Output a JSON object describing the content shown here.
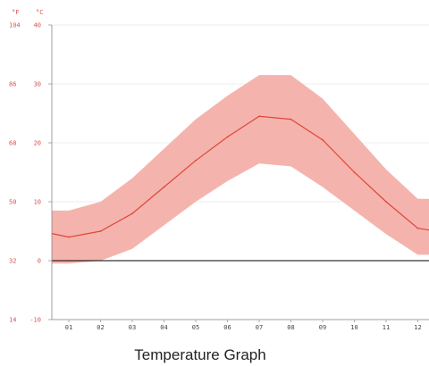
{
  "chart_data": {
    "type": "area",
    "caption": "Temperature Graph",
    "unit_labels": {
      "fahrenheit": "°F",
      "celsius": "°C"
    },
    "y_celsius_ticks": [
      "40",
      "30",
      "20",
      "10",
      "0",
      "-10"
    ],
    "y_fahrenheit_ticks": [
      "104",
      "86",
      "68",
      "50",
      "32",
      "14"
    ],
    "y_tick_values_c": [
      40,
      30,
      20,
      10,
      0,
      -10
    ],
    "ylim_c": [
      -10,
      40
    ],
    "categories": [
      "01",
      "02",
      "03",
      "04",
      "05",
      "06",
      "07",
      "08",
      "09",
      "10",
      "11",
      "12"
    ],
    "series": [
      {
        "role": "mean",
        "values": [
          4,
          5,
          8,
          12.5,
          17,
          21,
          24.5,
          24,
          20.5,
          15,
          10,
          5.5
        ]
      },
      {
        "role": "max",
        "values": [
          8.5,
          10,
          14,
          19,
          24,
          28,
          31.5,
          31.5,
          27.5,
          21.5,
          15.5,
          10.5
        ]
      },
      {
        "role": "min",
        "values": [
          -0.5,
          0,
          2,
          6,
          10,
          13.5,
          16.5,
          16,
          12.5,
          8.5,
          4.5,
          1
        ]
      }
    ],
    "grid": true,
    "colors": {
      "axis_text": "#d9534f",
      "band": "#f4b4ad",
      "line": "#e0463a",
      "grid": "#dddddd",
      "zero_line": "#000000"
    }
  }
}
